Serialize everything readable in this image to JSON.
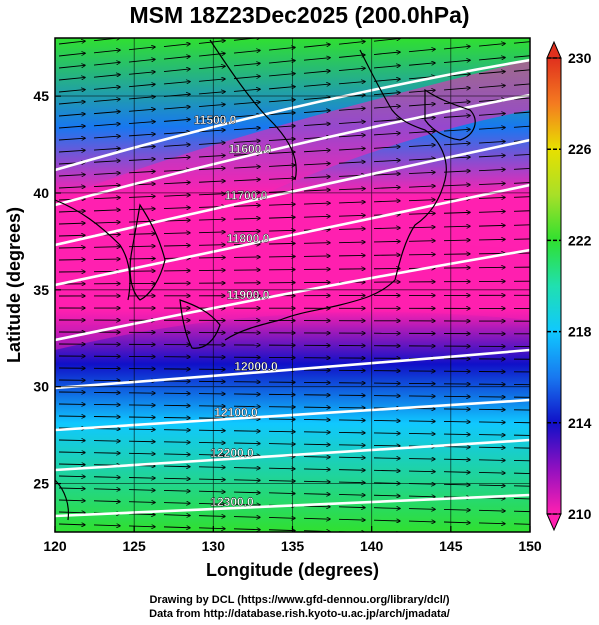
{
  "title": "MSM 18Z23Dec2025 (200.0hPa)",
  "map": {
    "xlabel": "Longitude (degrees)",
    "ylabel": "Latitude  (degrees)",
    "lon_range": [
      120,
      150
    ],
    "lat_range": [
      22.5,
      48
    ],
    "lon_ticks": [
      "120",
      "125",
      "130",
      "135",
      "140",
      "145",
      "150"
    ],
    "lat_ticks": [
      "25",
      "30",
      "35",
      "40",
      "45"
    ],
    "lon_tick_values": [
      120,
      125,
      130,
      135,
      140,
      145,
      150
    ],
    "lat_tick_values": [
      25,
      30,
      35,
      40,
      45
    ],
    "gridlines": true,
    "contours": [
      {
        "label": "11500.0"
      },
      {
        "label": "11600.0"
      },
      {
        "label": "11700.0"
      },
      {
        "label": "11800.0"
      },
      {
        "label": "11900.0"
      },
      {
        "label": "12000.0"
      },
      {
        "label": "12100.0"
      },
      {
        "label": "12200.0"
      },
      {
        "label": "12300.0"
      }
    ],
    "colors": {
      "wind_arrow": "#000000",
      "contour": "#ffffff",
      "coastline": "#000000"
    }
  },
  "colorbar": {
    "labels": [
      "230",
      "226",
      "222",
      "218",
      "214",
      "210"
    ],
    "values": [
      230,
      226,
      222,
      218,
      214,
      210
    ],
    "range": [
      210,
      230
    ],
    "scale": [
      {
        "value": 230,
        "color": "#e0301e"
      },
      {
        "value": 228,
        "color": "#f47b20"
      },
      {
        "value": 226,
        "color": "#e8e000"
      },
      {
        "value": 224,
        "color": "#a8e028"
      },
      {
        "value": 222,
        "color": "#30e030"
      },
      {
        "value": 220,
        "color": "#20e0b0"
      },
      {
        "value": 218,
        "color": "#10c8ff"
      },
      {
        "value": 216,
        "color": "#1878f0"
      },
      {
        "value": 214,
        "color": "#1010c8"
      },
      {
        "value": 212,
        "color": "#9010c0"
      },
      {
        "value": 210,
        "color": "#ff20b0"
      }
    ]
  },
  "footer": {
    "line1": "Drawing by DCL (https://www.gfd-dennou.org/library/dcl/)",
    "line2": "Data from http://database.rish.kyoto-u.ac.jp/arch/jmadata/"
  }
}
